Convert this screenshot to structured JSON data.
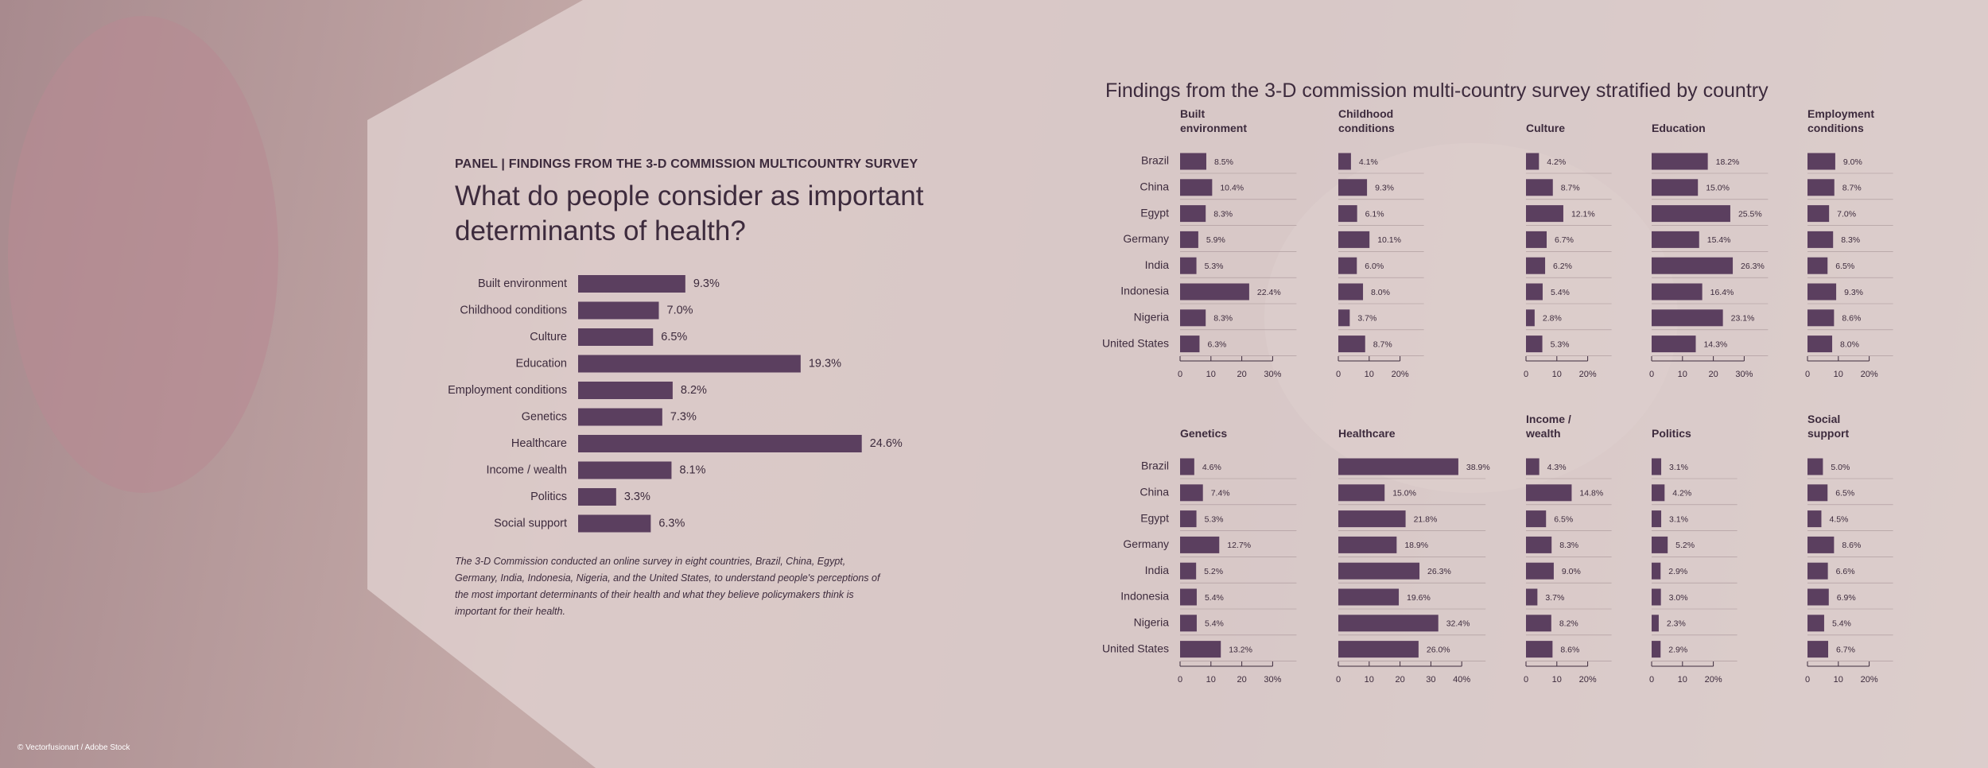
{
  "header": {
    "kicker": "PANEL | FINDINGS FROM THE 3-D COMMISSION MULTICOUNTRY SURVEY",
    "title": "What do people consider as important determinants of health?"
  },
  "note": "The 3-D Commission conducted an online survey in eight countries, Brazil, China, Egypt, Germany, India, Indonesia, Nigeria, and the United States, to understand people's perceptions of the most important determinants of their health and what they believe policymakers think is important for their health.",
  "credit": "© Vectorfusionart / Adobe Stock",
  "chart_data": [
    {
      "type": "hbar",
      "color": "#5b3f5f",
      "categories": [
        "Built environment",
        "Childhood conditions",
        "Culture",
        "Education",
        "Employment conditions",
        "Genetics",
        "Healthcare",
        "Income / wealth",
        "Politics",
        "Social support"
      ],
      "values": [
        9.3,
        7.0,
        6.5,
        19.3,
        8.2,
        7.3,
        24.6,
        8.1,
        3.3,
        6.3
      ],
      "value_labels": [
        "9.3%",
        "7.0%",
        "6.5%",
        "19.3%",
        "8.2%",
        "7.3%",
        "24.6%",
        "8.1%",
        "3.3%",
        "6.3%"
      ]
    },
    {
      "type": "hbar-panels",
      "color": "#5b3f5f",
      "title": "Findings from the 3-D commission multi-country survey stratified by country",
      "categories": [
        "Brazil",
        "China",
        "Egypt",
        "Germany",
        "India",
        "Indonesia",
        "Nigeria",
        "United States"
      ],
      "panels": [
        {
          "title": "Built environment",
          "values": [
            8.5,
            10.4,
            8.3,
            5.9,
            5.3,
            22.4,
            8.3,
            6.3
          ],
          "value_labels": [
            "8.5%",
            "10.4%",
            "8.3%",
            "5.9%",
            "5.3%",
            "22.4%",
            "8.3%",
            "6.3%"
          ],
          "xlim": [
            0,
            30
          ],
          "xticks": [
            0,
            10,
            20,
            {
              "value": 30,
              "label": "30%"
            }
          ]
        },
        {
          "title": "Childhood conditions",
          "values": [
            4.1,
            9.3,
            6.1,
            10.1,
            6.0,
            8.0,
            3.7,
            8.7
          ],
          "value_labels": [
            "4.1%",
            "9.3%",
            "6.1%",
            "10.1%",
            "6.0%",
            "8.0%",
            "3.7%",
            "8.7%"
          ],
          "xlim": [
            0,
            20
          ],
          "xticks": [
            0,
            10,
            {
              "value": 20,
              "label": "20%"
            }
          ]
        },
        {
          "title": "Culture",
          "values": [
            4.2,
            8.7,
            12.1,
            6.7,
            6.2,
            5.4,
            2.8,
            5.3
          ],
          "value_labels": [
            "4.2%",
            "8.7%",
            "12.1%",
            "6.7%",
            "6.2%",
            "5.4%",
            "2.8%",
            "5.3%"
          ],
          "xlim": [
            0,
            20
          ],
          "xticks": [
            0,
            10,
            {
              "value": 20,
              "label": "20%"
            }
          ]
        },
        {
          "title": "Education",
          "values": [
            18.2,
            15.0,
            25.5,
            15.4,
            26.3,
            16.4,
            23.1,
            14.3
          ],
          "value_labels": [
            "18.2%",
            "15.0%",
            "25.5%",
            "15.4%",
            "26.3%",
            "16.4%",
            "23.1%",
            "14.3%"
          ],
          "xlim": [
            0,
            30
          ],
          "xticks": [
            0,
            10,
            20,
            {
              "value": 30,
              "label": "30%"
            }
          ]
        },
        {
          "title": "Employment conditions",
          "values": [
            9.0,
            8.7,
            7.0,
            8.3,
            6.5,
            9.3,
            8.6,
            8.0
          ],
          "value_labels": [
            "9.0%",
            "8.7%",
            "7.0%",
            "8.3%",
            "6.5%",
            "9.3%",
            "8.6%",
            "8.0%"
          ],
          "xlim": [
            0,
            20
          ],
          "xticks": [
            0,
            10,
            {
              "value": 20,
              "label": "20%"
            }
          ]
        },
        {
          "title": "Genetics",
          "values": [
            4.6,
            7.4,
            5.3,
            12.7,
            5.2,
            5.4,
            5.4,
            13.2
          ],
          "value_labels": [
            "4.6%",
            "7.4%",
            "5.3%",
            "12.7%",
            "5.2%",
            "5.4%",
            "5.4%",
            "13.2%"
          ],
          "xlim": [
            0,
            30
          ],
          "xticks": [
            0,
            10,
            20,
            {
              "value": 30,
              "label": "30%"
            }
          ]
        },
        {
          "title": "Healthcare",
          "values": [
            38.9,
            15.0,
            21.8,
            18.9,
            26.3,
            19.6,
            32.4,
            26.0
          ],
          "value_labels": [
            "38.9%",
            "15.0%",
            "21.8%",
            "18.9%",
            "26.3%",
            "19.6%",
            "32.4%",
            "26.0%"
          ],
          "xlim": [
            0,
            40
          ],
          "xticks": [
            0,
            10,
            20,
            30,
            {
              "value": 40,
              "label": "40%"
            }
          ]
        },
        {
          "title": "Income / wealth",
          "values": [
            4.3,
            14.8,
            6.5,
            8.3,
            9.0,
            3.7,
            8.2,
            8.6
          ],
          "value_labels": [
            "4.3%",
            "14.8%",
            "6.5%",
            "8.3%",
            "9.0%",
            "3.7%",
            "8.2%",
            "8.6%"
          ],
          "xlim": [
            0,
            20
          ],
          "xticks": [
            0,
            10,
            {
              "value": 20,
              "label": "20%"
            }
          ]
        },
        {
          "title": "Politics",
          "values": [
            3.1,
            4.2,
            3.1,
            5.2,
            2.9,
            3.0,
            2.3,
            2.9
          ],
          "value_labels": [
            "3.1%",
            "4.2%",
            "3.1%",
            "5.2%",
            "2.9%",
            "3.0%",
            "2.3%",
            "2.9%"
          ],
          "xlim": [
            0,
            20
          ],
          "xticks": [
            0,
            10,
            {
              "value": 20,
              "label": "20%"
            }
          ]
        },
        {
          "title": "Social support",
          "values": [
            5.0,
            6.5,
            4.5,
            8.6,
            6.6,
            6.9,
            5.4,
            6.7
          ],
          "value_labels": [
            "5.0%",
            "6.5%",
            "4.5%",
            "8.6%",
            "6.6%",
            "6.9%",
            "5.4%",
            "6.7%"
          ],
          "xlim": [
            0,
            20
          ],
          "xticks": [
            0,
            10,
            {
              "value": 20,
              "label": "20%"
            }
          ]
        }
      ]
    }
  ]
}
